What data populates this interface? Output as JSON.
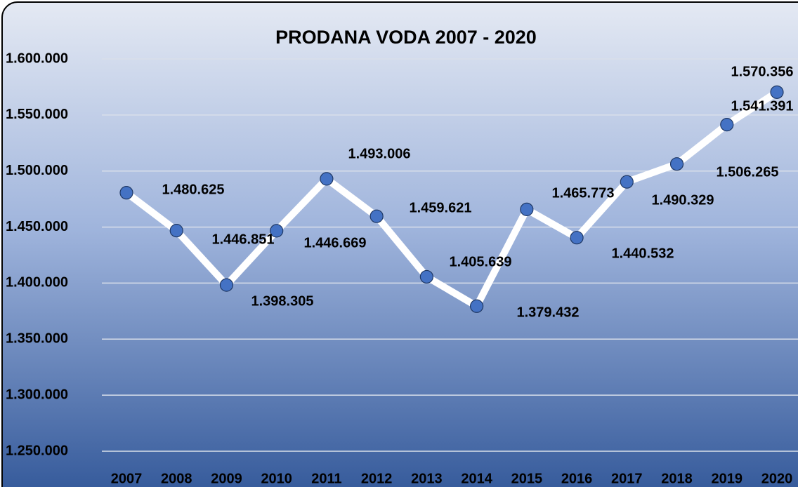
{
  "chart_data": {
    "type": "line",
    "title": "PRODANA VODA 2007 - 2020",
    "categories": [
      "2007",
      "2008",
      "2009",
      "2010",
      "2011",
      "2012",
      "2013",
      "2014",
      "2015",
      "2016",
      "2017",
      "2018",
      "2019",
      "2020"
    ],
    "series": [
      {
        "name": "Prodana voda",
        "color": "#ffffff",
        "marker_color": "#4472c4",
        "values": [
          1480625,
          1446851,
          1398305,
          1446669,
          1493006,
          1459621,
          1405639,
          1379432,
          1465773,
          1440532,
          1490329,
          1506265,
          1541391,
          1570356
        ],
        "value_labels": [
          "1.480.625",
          "1.446.851",
          "1.398.305",
          "1.446.669",
          "1.493.006",
          "1.459.621",
          "1.405.639",
          "1.379.432",
          "1.465.773",
          "1.440.532",
          "1.490.329",
          "1.506.265",
          "1.541.391",
          "1.570.356"
        ]
      }
    ],
    "ylim": [
      1250000,
      1600000
    ],
    "yticks": [
      {
        "value": 1250000,
        "label": "1.250.000"
      },
      {
        "value": 1300000,
        "label": "1.300.000"
      },
      {
        "value": 1350000,
        "label": "1.350.000"
      },
      {
        "value": 1400000,
        "label": "1.400.000"
      },
      {
        "value": 1450000,
        "label": "1.450.000"
      },
      {
        "value": 1500000,
        "label": "1.500.000"
      },
      {
        "value": 1550000,
        "label": "1.550.000"
      },
      {
        "value": 1600000,
        "label": "1.600.000"
      }
    ],
    "grid": true
  }
}
